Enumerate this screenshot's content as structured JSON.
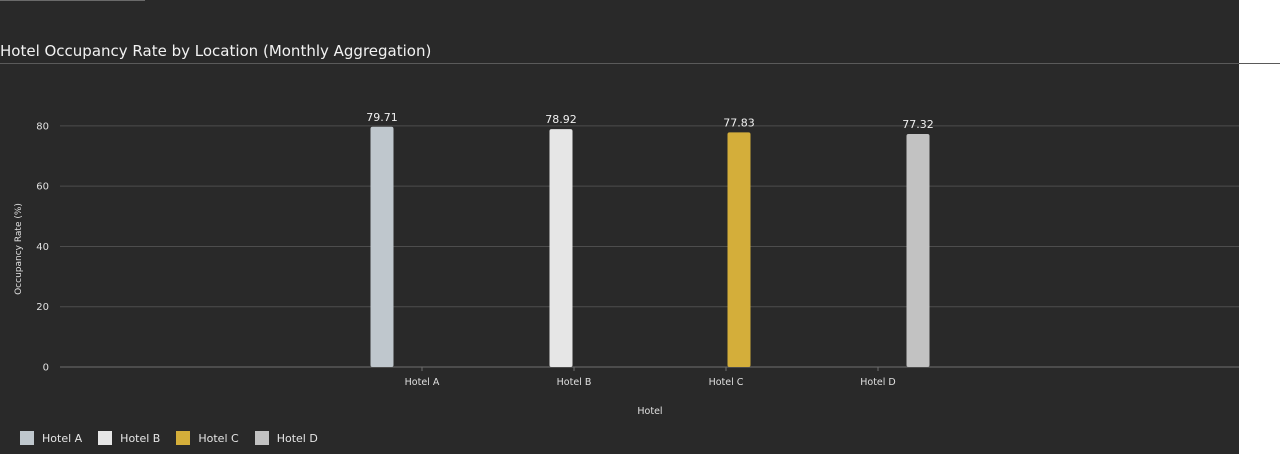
{
  "chart_data": {
    "type": "bar",
    "title": "Hotel Occupancy Rate by Location (Monthly Aggregation)",
    "xlabel": "Hotel",
    "ylabel": "Occupancy Rate (%)",
    "categories": [
      "Hotel A",
      "Hotel B",
      "Hotel C",
      "Hotel D"
    ],
    "values": [
      79.71,
      78.92,
      77.83,
      77.32
    ],
    "data_labels": [
      "79.71",
      "78.92",
      "77.83",
      "77.32"
    ],
    "colors": [
      "#bfc7cd",
      "#e6e6e6",
      "#d4ae3a",
      "#c2c2c2"
    ],
    "ylim": [
      0,
      86.6
    ],
    "yticks": [
      0,
      20,
      40,
      60,
      80
    ],
    "grid": true,
    "legend_position": "bottom-left"
  }
}
